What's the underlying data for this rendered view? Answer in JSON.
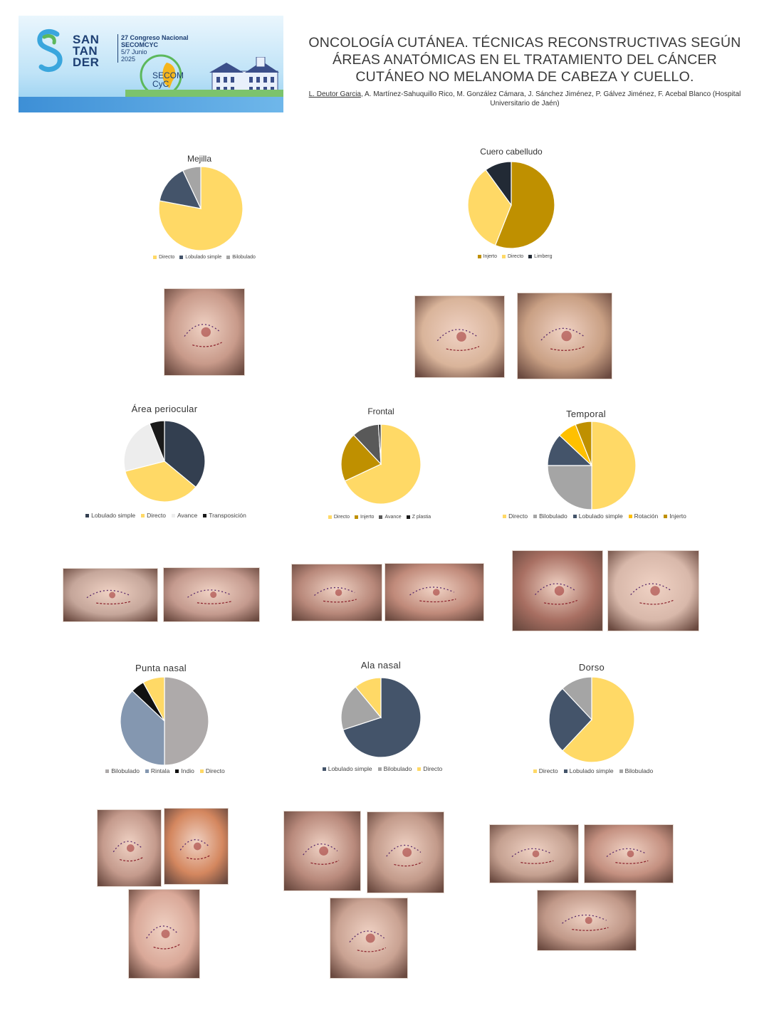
{
  "banner": {
    "logo": "SAN TAN DER",
    "logo_lines": [
      "SAN",
      "TAN",
      "DER"
    ],
    "congress_lines": [
      "27 Congreso Nacional",
      "SECOMCYC",
      "5/7 Junio",
      "2025"
    ],
    "seal_text": "SECOM CyC",
    "colors": {
      "brand_blue": "#1d3f73",
      "sky": "#bfe3f7",
      "accent_green": "#5cb85c"
    }
  },
  "header": {
    "title": "ONCOLOGÍA CUTÁNEA. TÉCNICAS RECONSTRUCTIVAS SEGÚN ÁREAS ANATÓMICAS EN EL TRATAMIENTO DEL CÁNCER CUTÁNEO NO MELANOMA DE CABEZA Y CUELLO.",
    "first_author": "L. Deutor Garcia",
    "other_authors": ", A. Martínez-Sahuquillo Rico, M. González Cámara, J. Sánchez Jiménez, P. Gálvez Jiménez, F. Acebal Blanco (Hospital Universitario de Jaén)"
  },
  "chart_data": [
    {
      "type": "pie",
      "title": "Mejilla",
      "series": [
        {
          "name": "Directo",
          "value": 78,
          "color": "#ffd966"
        },
        {
          "name": "Lobulado simple",
          "value": 15,
          "color": "#44546a"
        },
        {
          "name": "Bilobulado",
          "value": 7,
          "color": "#a5a5a5"
        }
      ]
    },
    {
      "type": "pie",
      "title": "Cuero cabelludo",
      "series": [
        {
          "name": "Injerto",
          "value": 56,
          "color": "#bf9000"
        },
        {
          "name": "Directo",
          "value": 34,
          "color": "#ffd966"
        },
        {
          "name": "Limberg",
          "value": 10,
          "color": "#222a35"
        }
      ]
    },
    {
      "type": "pie",
      "title": "Área periocular",
      "series": [
        {
          "name": "Lobulado simple",
          "value": 36,
          "color": "#333f50"
        },
        {
          "name": "Directo",
          "value": 35,
          "color": "#ffd966"
        },
        {
          "name": "Avance",
          "value": 23,
          "color": "#ededed"
        },
        {
          "name": "Transposición",
          "value": 6,
          "color": "#1a1a1a"
        }
      ]
    },
    {
      "type": "pie",
      "title": "Frontal",
      "series": [
        {
          "name": "Directo",
          "value": 68,
          "color": "#ffd966"
        },
        {
          "name": "Injerto",
          "value": 20,
          "color": "#bf9000"
        },
        {
          "name": "Avance",
          "value": 11,
          "color": "#595959"
        },
        {
          "name": "Z plastia",
          "value": 1,
          "color": "#1a1a1a"
        }
      ]
    },
    {
      "type": "pie",
      "title": "Temporal",
      "series": [
        {
          "name": "Directo",
          "value": 50,
          "color": "#ffd966"
        },
        {
          "name": "Bilobulado",
          "value": 25,
          "color": "#a5a5a5"
        },
        {
          "name": "Lobulado simple",
          "value": 12,
          "color": "#44546a"
        },
        {
          "name": "Rotación",
          "value": 7,
          "color": "#ffc000"
        },
        {
          "name": "Injerto",
          "value": 6,
          "color": "#bf9000"
        }
      ]
    },
    {
      "type": "pie",
      "title": "Punta nasal",
      "series": [
        {
          "name": "Bilobulado",
          "value": 50,
          "color": "#aeaaaa"
        },
        {
          "name": "Rintala",
          "value": 37,
          "color": "#8497b0"
        },
        {
          "name": "Indio",
          "value": 5,
          "color": "#111111"
        },
        {
          "name": "Directo",
          "value": 8,
          "color": "#ffd966"
        }
      ]
    },
    {
      "type": "pie",
      "title": "Ala nasal",
      "series": [
        {
          "name": "Lobulado simple",
          "value": 70,
          "color": "#44546a"
        },
        {
          "name": "Bilobulado",
          "value": 19,
          "color": "#a5a5a5"
        },
        {
          "name": "Directo",
          "value": 11,
          "color": "#ffd966"
        }
      ]
    },
    {
      "type": "pie",
      "title": "Dorso",
      "series": [
        {
          "name": "Directo",
          "value": 62,
          "color": "#ffd966"
        },
        {
          "name": "Lobulado simple",
          "value": 26,
          "color": "#44546a"
        },
        {
          "name": "Bilobulado",
          "value": 12,
          "color": "#a5a5a5"
        }
      ]
    }
  ],
  "photos": [
    {
      "id": "mejilla-photo",
      "tone": "#c89a8a"
    },
    {
      "id": "cuero-photo-1",
      "tone": "#d9b49a"
    },
    {
      "id": "cuero-photo-2",
      "tone": "#c9a084"
    },
    {
      "id": "periocular-photo-1",
      "tone": "#c5a69a"
    },
    {
      "id": "periocular-photo-2",
      "tone": "#c49a8e"
    },
    {
      "id": "frontal-photo-1",
      "tone": "#b8887a"
    },
    {
      "id": "frontal-photo-2",
      "tone": "#c08a7a"
    },
    {
      "id": "temporal-photo-1",
      "tone": "#a86f62"
    },
    {
      "id": "temporal-photo-2",
      "tone": "#d8b8aa"
    },
    {
      "id": "punta-photo-1",
      "tone": "#c49a8c"
    },
    {
      "id": "punta-photo-2",
      "tone": "#d4875f"
    },
    {
      "id": "punta-photo-3",
      "tone": "#d9a898"
    },
    {
      "id": "ala-photo-1",
      "tone": "#b98a7c"
    },
    {
      "id": "ala-photo-2",
      "tone": "#c29a8a"
    },
    {
      "id": "ala-photo-3",
      "tone": "#c9a292"
    },
    {
      "id": "dorso-photo-1",
      "tone": "#c4a090"
    },
    {
      "id": "dorso-photo-2",
      "tone": "#c49080"
    },
    {
      "id": "dorso-photo-3",
      "tone": "#c09888"
    }
  ]
}
